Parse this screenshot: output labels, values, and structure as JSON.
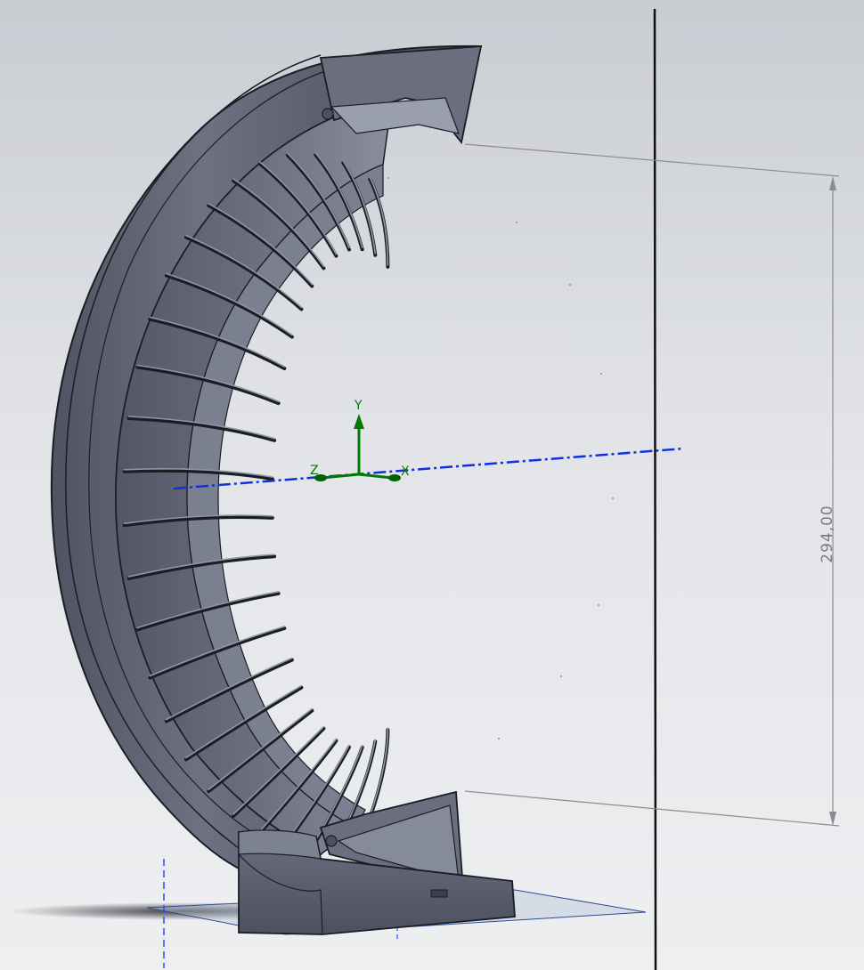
{
  "viewport": {
    "background_top": "#c9ccd2",
    "background_mid": "#e2e4e8",
    "background_bottom": "#eeeff1"
  },
  "part": {
    "body_color": "#5d6170",
    "highlight_color": "#9196a6",
    "edge_color": "#1b1d24",
    "vane_count": 26
  },
  "triad": {
    "x_label": "X",
    "y_label": "Y",
    "z_label": "Z",
    "axis_color": "#007a00"
  },
  "center_axis": {
    "color": "#1030e0"
  },
  "dimension": {
    "value": "294,00",
    "color": "#7a7c80"
  }
}
